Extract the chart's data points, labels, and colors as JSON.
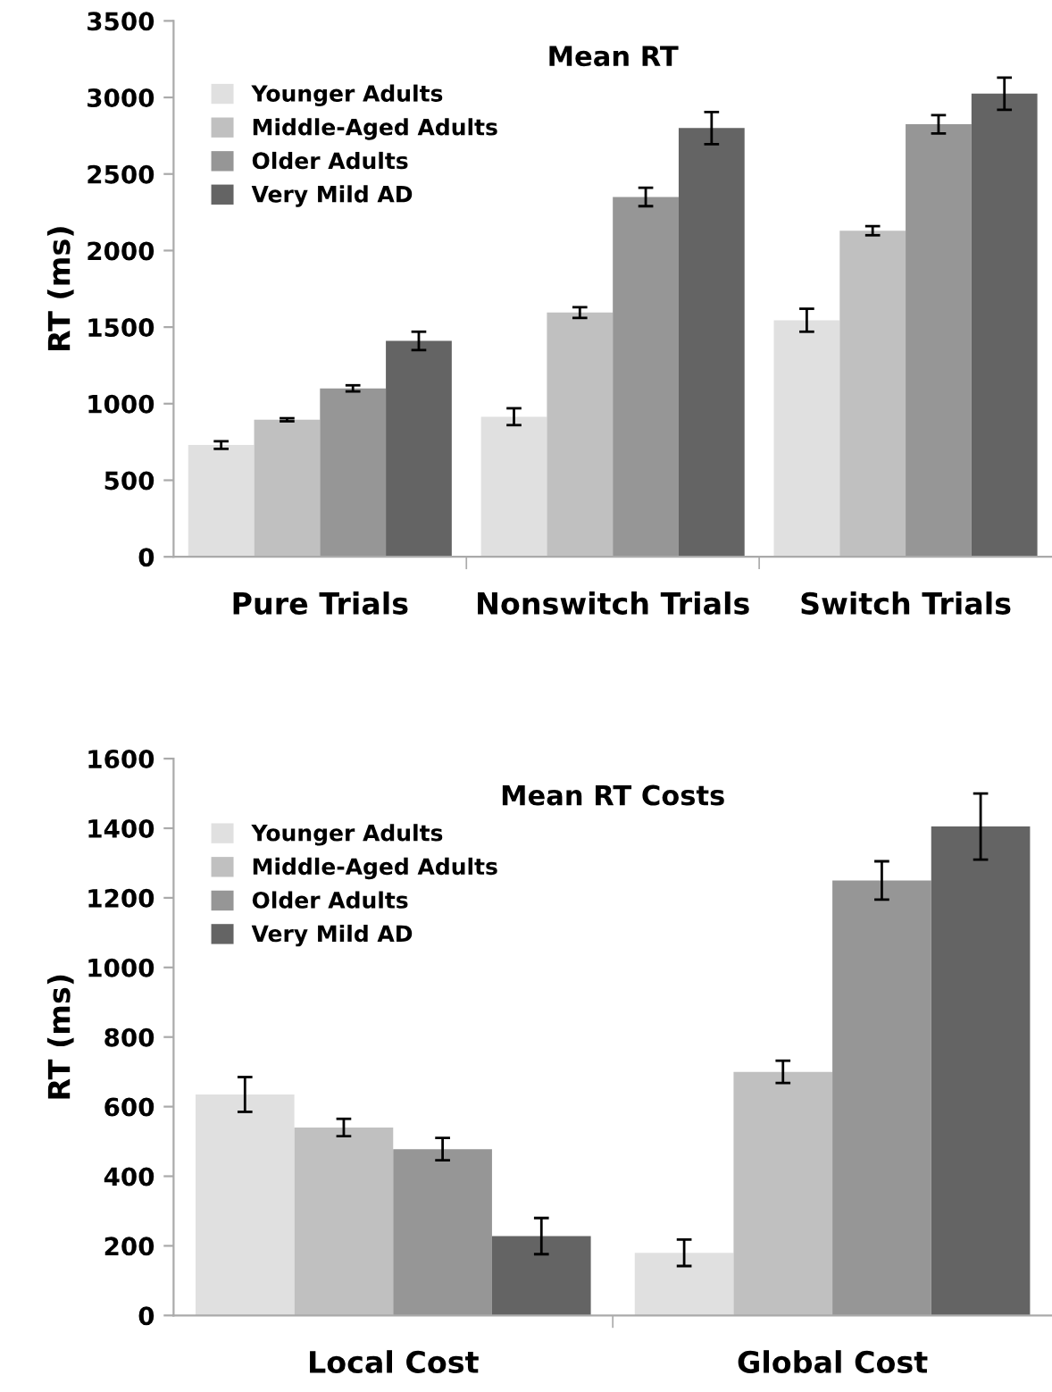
{
  "chart_data": [
    {
      "type": "bar",
      "title": "Mean RT",
      "ylabel": "RT (ms)",
      "categories": [
        "Pure Trials",
        "Nonswitch Trials",
        "Switch Trials"
      ],
      "ylim": [
        0,
        3500
      ],
      "yticks": [
        0,
        500,
        1000,
        1500,
        2000,
        2500,
        3000,
        3500
      ],
      "grid": false,
      "legend": "top left",
      "series": [
        {
          "name": "Younger Adults",
          "color": "#e0e0e0",
          "values": [
            730,
            915,
            1545
          ],
          "errors": [
            25,
            55,
            75
          ]
        },
        {
          "name": "Middle-Aged Adults",
          "color": "#c0c0c0",
          "values": [
            895,
            1595,
            2130
          ],
          "errors": [
            10,
            35,
            30
          ]
        },
        {
          "name": "Older Adults",
          "color": "#969696",
          "values": [
            1100,
            2350,
            2825
          ],
          "errors": [
            20,
            60,
            60
          ]
        },
        {
          "name": "Very Mild AD",
          "color": "#646464",
          "values": [
            1410,
            2800,
            3025
          ],
          "errors": [
            60,
            105,
            105
          ]
        }
      ]
    },
    {
      "type": "bar",
      "title": "Mean RT Costs",
      "ylabel": "RT (ms)",
      "categories": [
        "Local Cost",
        "Global Cost"
      ],
      "ylim": [
        0,
        1600
      ],
      "yticks": [
        0,
        200,
        400,
        600,
        800,
        1000,
        1200,
        1400,
        1600
      ],
      "grid": false,
      "legend": "top left",
      "series": [
        {
          "name": "Younger Adults",
          "color": "#e0e0e0",
          "values": [
            635,
            180
          ],
          "errors": [
            50,
            38
          ]
        },
        {
          "name": "Middle-Aged Adults",
          "color": "#c0c0c0",
          "values": [
            540,
            700
          ],
          "errors": [
            25,
            32
          ]
        },
        {
          "name": "Older Adults",
          "color": "#969696",
          "values": [
            478,
            1250
          ],
          "errors": [
            32,
            55
          ]
        },
        {
          "name": "Very Mild AD",
          "color": "#646464",
          "values": [
            228,
            1405
          ],
          "errors": [
            52,
            95
          ]
        }
      ]
    }
  ]
}
